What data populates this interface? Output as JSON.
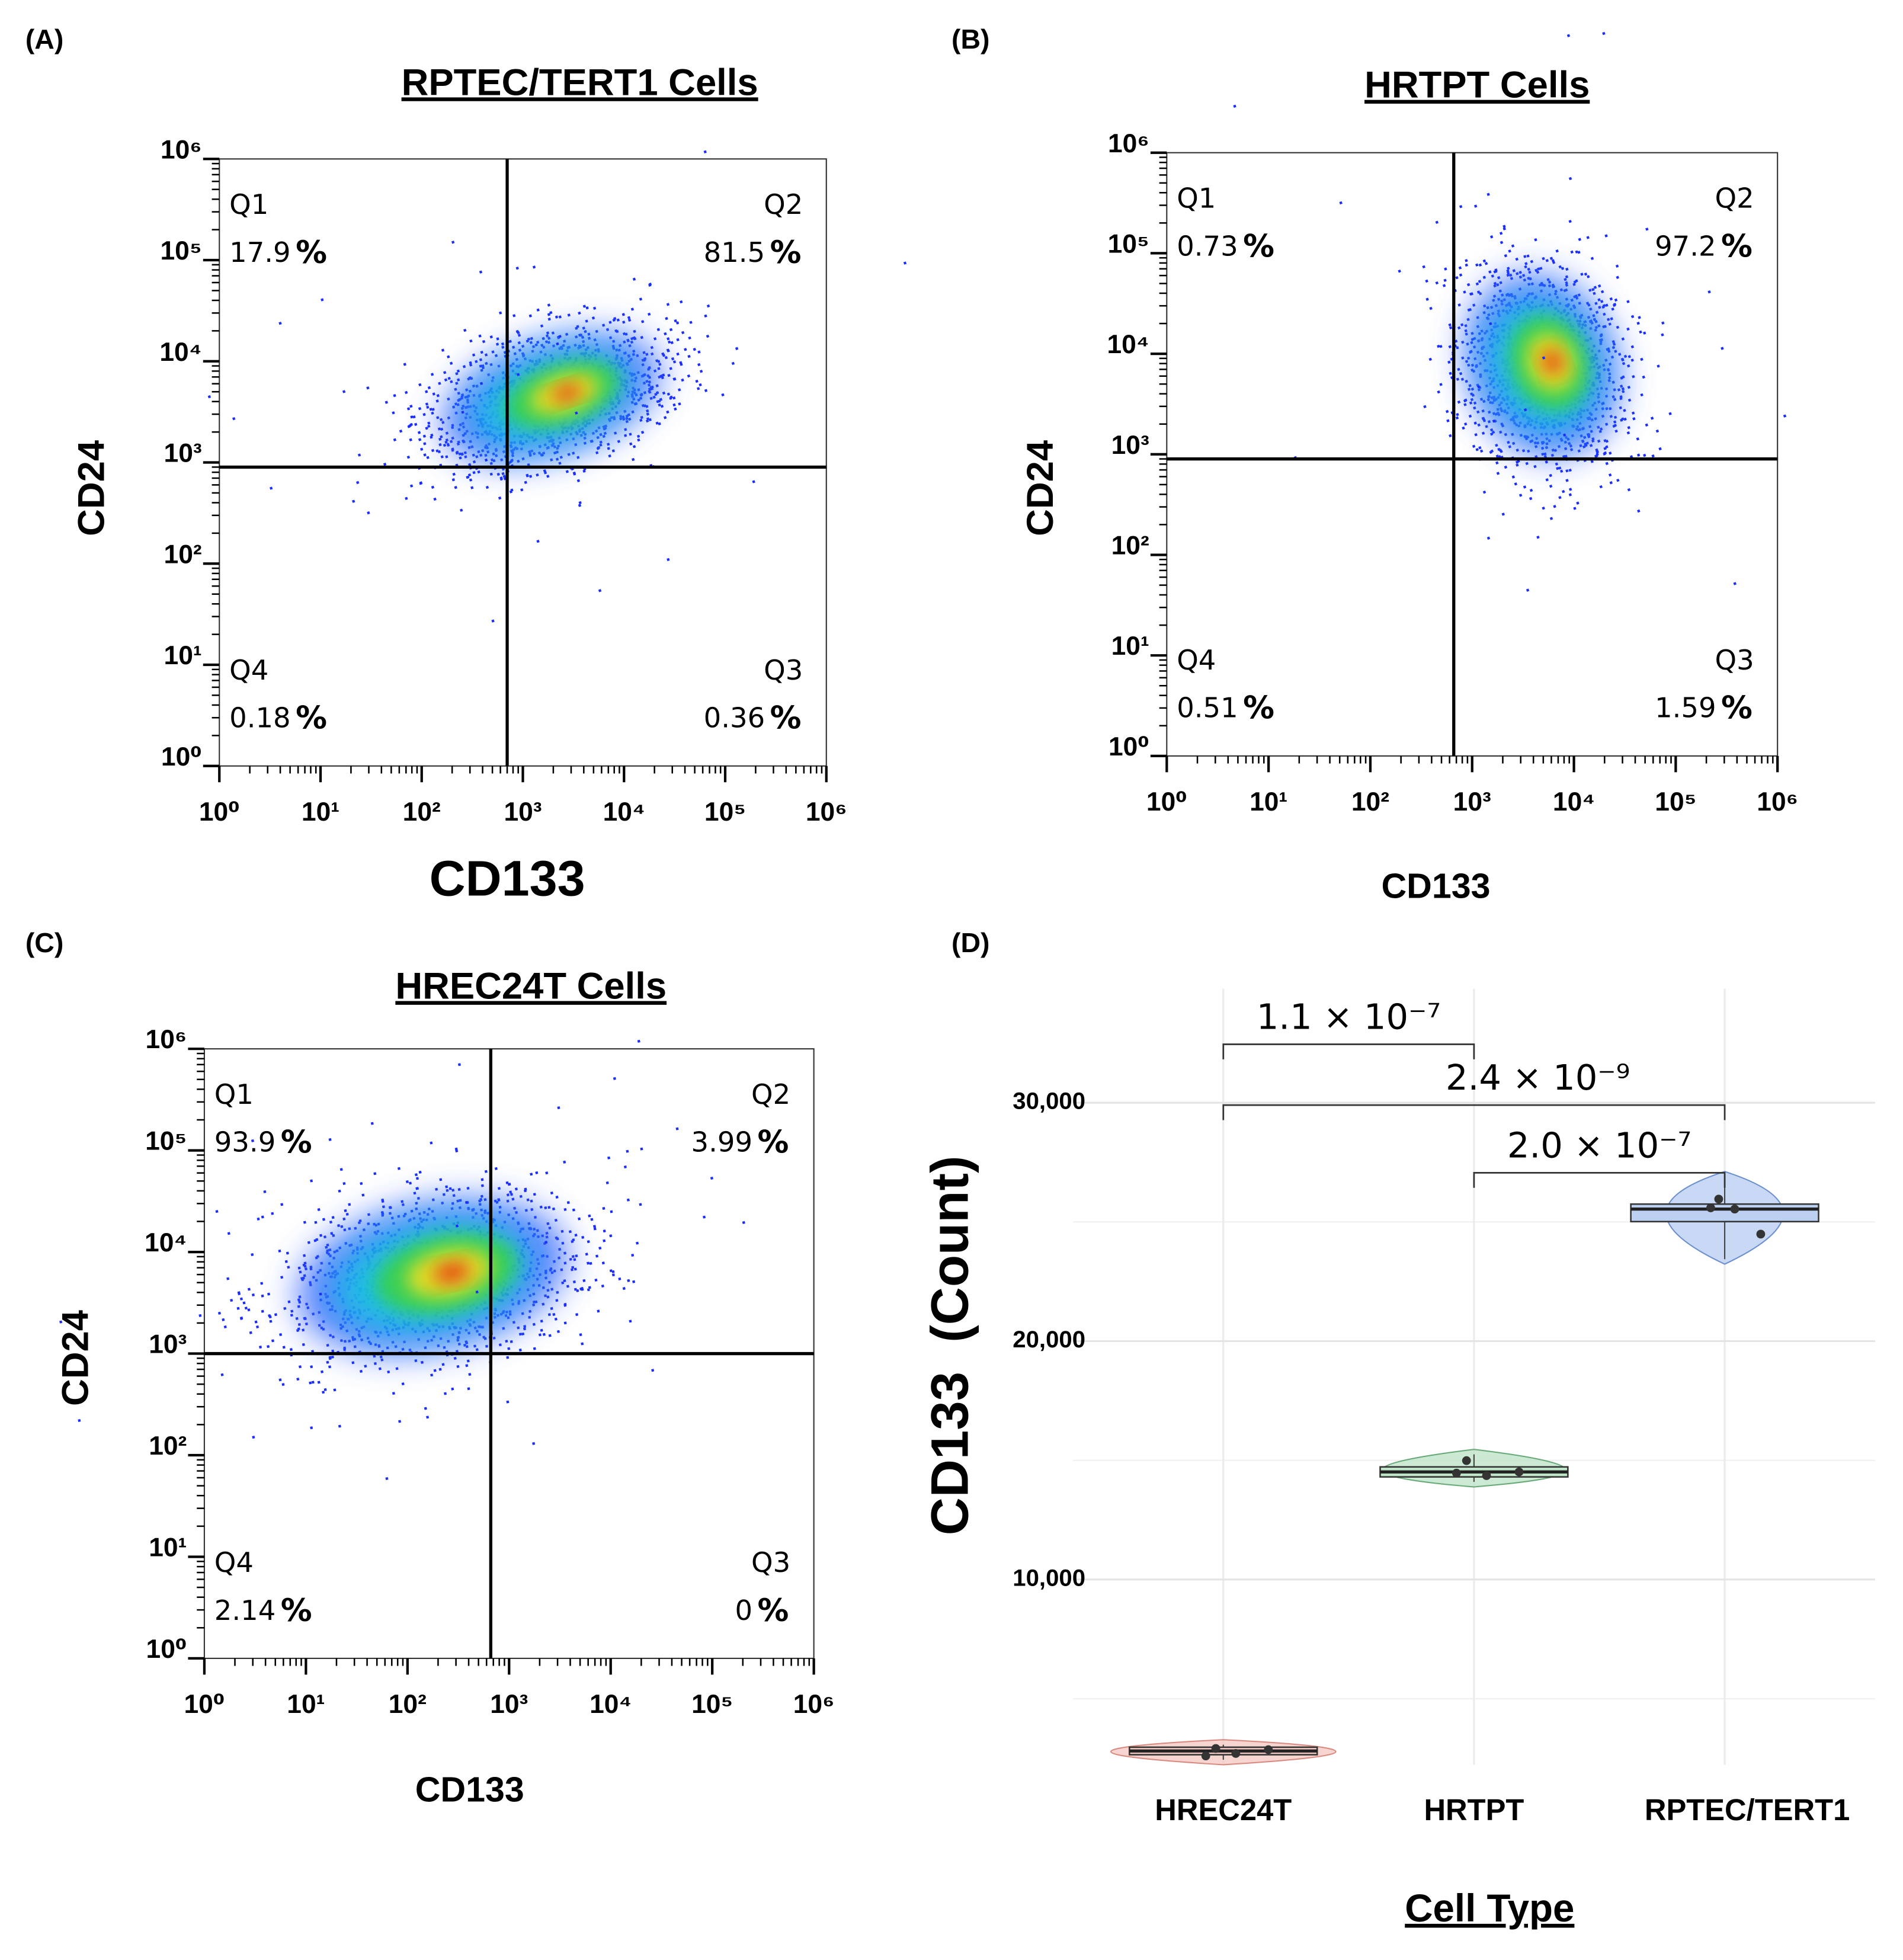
{
  "chart_data": [
    {
      "type": "flow",
      "panel": "(A)",
      "title": "RPTEC/TERT1 Cells",
      "xlabel": "CD133",
      "ylabel": "CD24",
      "xlim": [
        1,
        1000000
      ],
      "ylim": [
        1,
        1000000
      ],
      "log_scale": true,
      "xticks": [
        {
          "value": 1,
          "label": "10⁰"
        },
        {
          "value": 10,
          "label": "10¹"
        },
        {
          "value": 100,
          "label": "10²"
        },
        {
          "value": 1000,
          "label": "10³"
        },
        {
          "value": 10000,
          "label": "10⁴"
        },
        {
          "value": 100000,
          "label": "10⁵"
        },
        {
          "value": 1000000,
          "label": "10⁶"
        }
      ],
      "yticks": [
        {
          "value": 1,
          "label": "10⁰"
        },
        {
          "value": 10,
          "label": "10¹"
        },
        {
          "value": 100,
          "label": "10²"
        },
        {
          "value": 1000,
          "label": "10³"
        },
        {
          "value": 10000,
          "label": "10⁴"
        },
        {
          "value": 100000,
          "label": "10⁵"
        },
        {
          "value": 1000000,
          "label": "10⁶"
        }
      ],
      "gate_x": 700,
      "gate_y": 900,
      "quadrants": [
        "Q1",
        "Q2",
        "Q3",
        "Q4"
      ],
      "values": [
        17.9,
        81.5,
        0.36,
        0.18
      ],
      "unit": "%"
    },
    {
      "type": "flow",
      "panel": "(B)",
      "title": "HRTPT Cells",
      "xlabel": "CD133",
      "ylabel": "CD24",
      "xlim": [
        1,
        1000000
      ],
      "ylim": [
        1,
        1000000
      ],
      "log_scale": true,
      "xticks": [
        {
          "value": 1,
          "label": "10⁰"
        },
        {
          "value": 10,
          "label": "10¹"
        },
        {
          "value": 100,
          "label": "10²"
        },
        {
          "value": 1000,
          "label": "10³"
        },
        {
          "value": 10000,
          "label": "10⁴"
        },
        {
          "value": 100000,
          "label": "10⁵"
        },
        {
          "value": 1000000,
          "label": "10⁶"
        }
      ],
      "yticks": [
        {
          "value": 1,
          "label": "10⁰"
        },
        {
          "value": 10,
          "label": "10¹"
        },
        {
          "value": 100,
          "label": "10²"
        },
        {
          "value": 1000,
          "label": "10³"
        },
        {
          "value": 10000,
          "label": "10⁴"
        },
        {
          "value": 100000,
          "label": "10⁵"
        },
        {
          "value": 1000000,
          "label": "10⁶"
        }
      ],
      "gate_x": 660,
      "gate_y": 900,
      "quadrants": [
        "Q1",
        "Q2",
        "Q3",
        "Q4"
      ],
      "values": [
        0.73,
        97.2,
        1.59,
        0.51
      ],
      "unit": "%"
    },
    {
      "type": "flow",
      "panel": "(C)",
      "title": "HREC24T Cells",
      "xlabel": "CD133",
      "ylabel": "CD24",
      "xlim": [
        1,
        1000000
      ],
      "ylim": [
        1,
        1000000
      ],
      "log_scale": true,
      "xticks": [
        {
          "value": 1,
          "label": "10⁰"
        },
        {
          "value": 10,
          "label": "10¹"
        },
        {
          "value": 100,
          "label": "10²"
        },
        {
          "value": 1000,
          "label": "10³"
        },
        {
          "value": 10000,
          "label": "10⁴"
        },
        {
          "value": 100000,
          "label": "10⁵"
        },
        {
          "value": 1000000,
          "label": "10⁶"
        }
      ],
      "yticks": [
        {
          "value": 1,
          "label": "10⁰"
        },
        {
          "value": 10,
          "label": "10¹"
        },
        {
          "value": 100,
          "label": "10²"
        },
        {
          "value": 1000,
          "label": "10³"
        },
        {
          "value": 10000,
          "label": "10⁴"
        },
        {
          "value": 100000,
          "label": "10⁵"
        },
        {
          "value": 1000000,
          "label": "10⁶"
        }
      ],
      "gate_x": 660,
      "gate_y": 1000,
      "quadrants": [
        "Q1",
        "Q2",
        "Q3",
        "Q4"
      ],
      "values": [
        93.9,
        3.99,
        0,
        2.14
      ],
      "unit": "%"
    },
    {
      "type": "violin",
      "panel": "(D)",
      "xlabel": "Cell Type",
      "ylabel": "CD133  (Count)",
      "categories": [
        "HREC24T",
        "HRTPT",
        "RPTEC/TERT1"
      ],
      "colors": [
        "#f4c9c4",
        "#bfe5c8",
        "#bcd0f2"
      ],
      "ylim": [
        2230,
        34780
      ],
      "yticks": [
        {
          "value": 10000,
          "label": "10,000"
        },
        {
          "value": 20000,
          "label": "20,000"
        },
        {
          "value": 30000,
          "label": "30,000"
        }
      ],
      "minor_yticks": [
        5000,
        15000,
        25000
      ],
      "grid": true,
      "boxes": [
        {
          "q1": 2651,
          "median": 2808,
          "q3": 2966,
          "violin": [
            2230,
            3281
          ],
          "points": [
            2913,
            2703,
            2598,
            2861
          ]
        },
        {
          "q1": 14304,
          "median": 14514,
          "q3": 14724,
          "violin": [
            13885,
            15459
          ],
          "points": [
            14987,
            14357,
            14462,
            14514
          ]
        },
        {
          "q1": 25013,
          "median": 25538,
          "q3": 25748,
          "violin": [
            23228,
            27113
          ],
          "points": [
            25958,
            25538,
            25590,
            24488
          ]
        }
      ],
      "comparisons": [
        {
          "pair": [
            0,
            1
          ],
          "y": 32450,
          "label": "1.1 × 10⁻⁷"
        },
        {
          "pair": [
            0,
            2
          ],
          "y": 29900,
          "label": "2.4 × 10⁻⁹"
        },
        {
          "pair": [
            1,
            2
          ],
          "y": 27060,
          "label": "2.0 × 10⁻⁷"
        }
      ]
    }
  ]
}
